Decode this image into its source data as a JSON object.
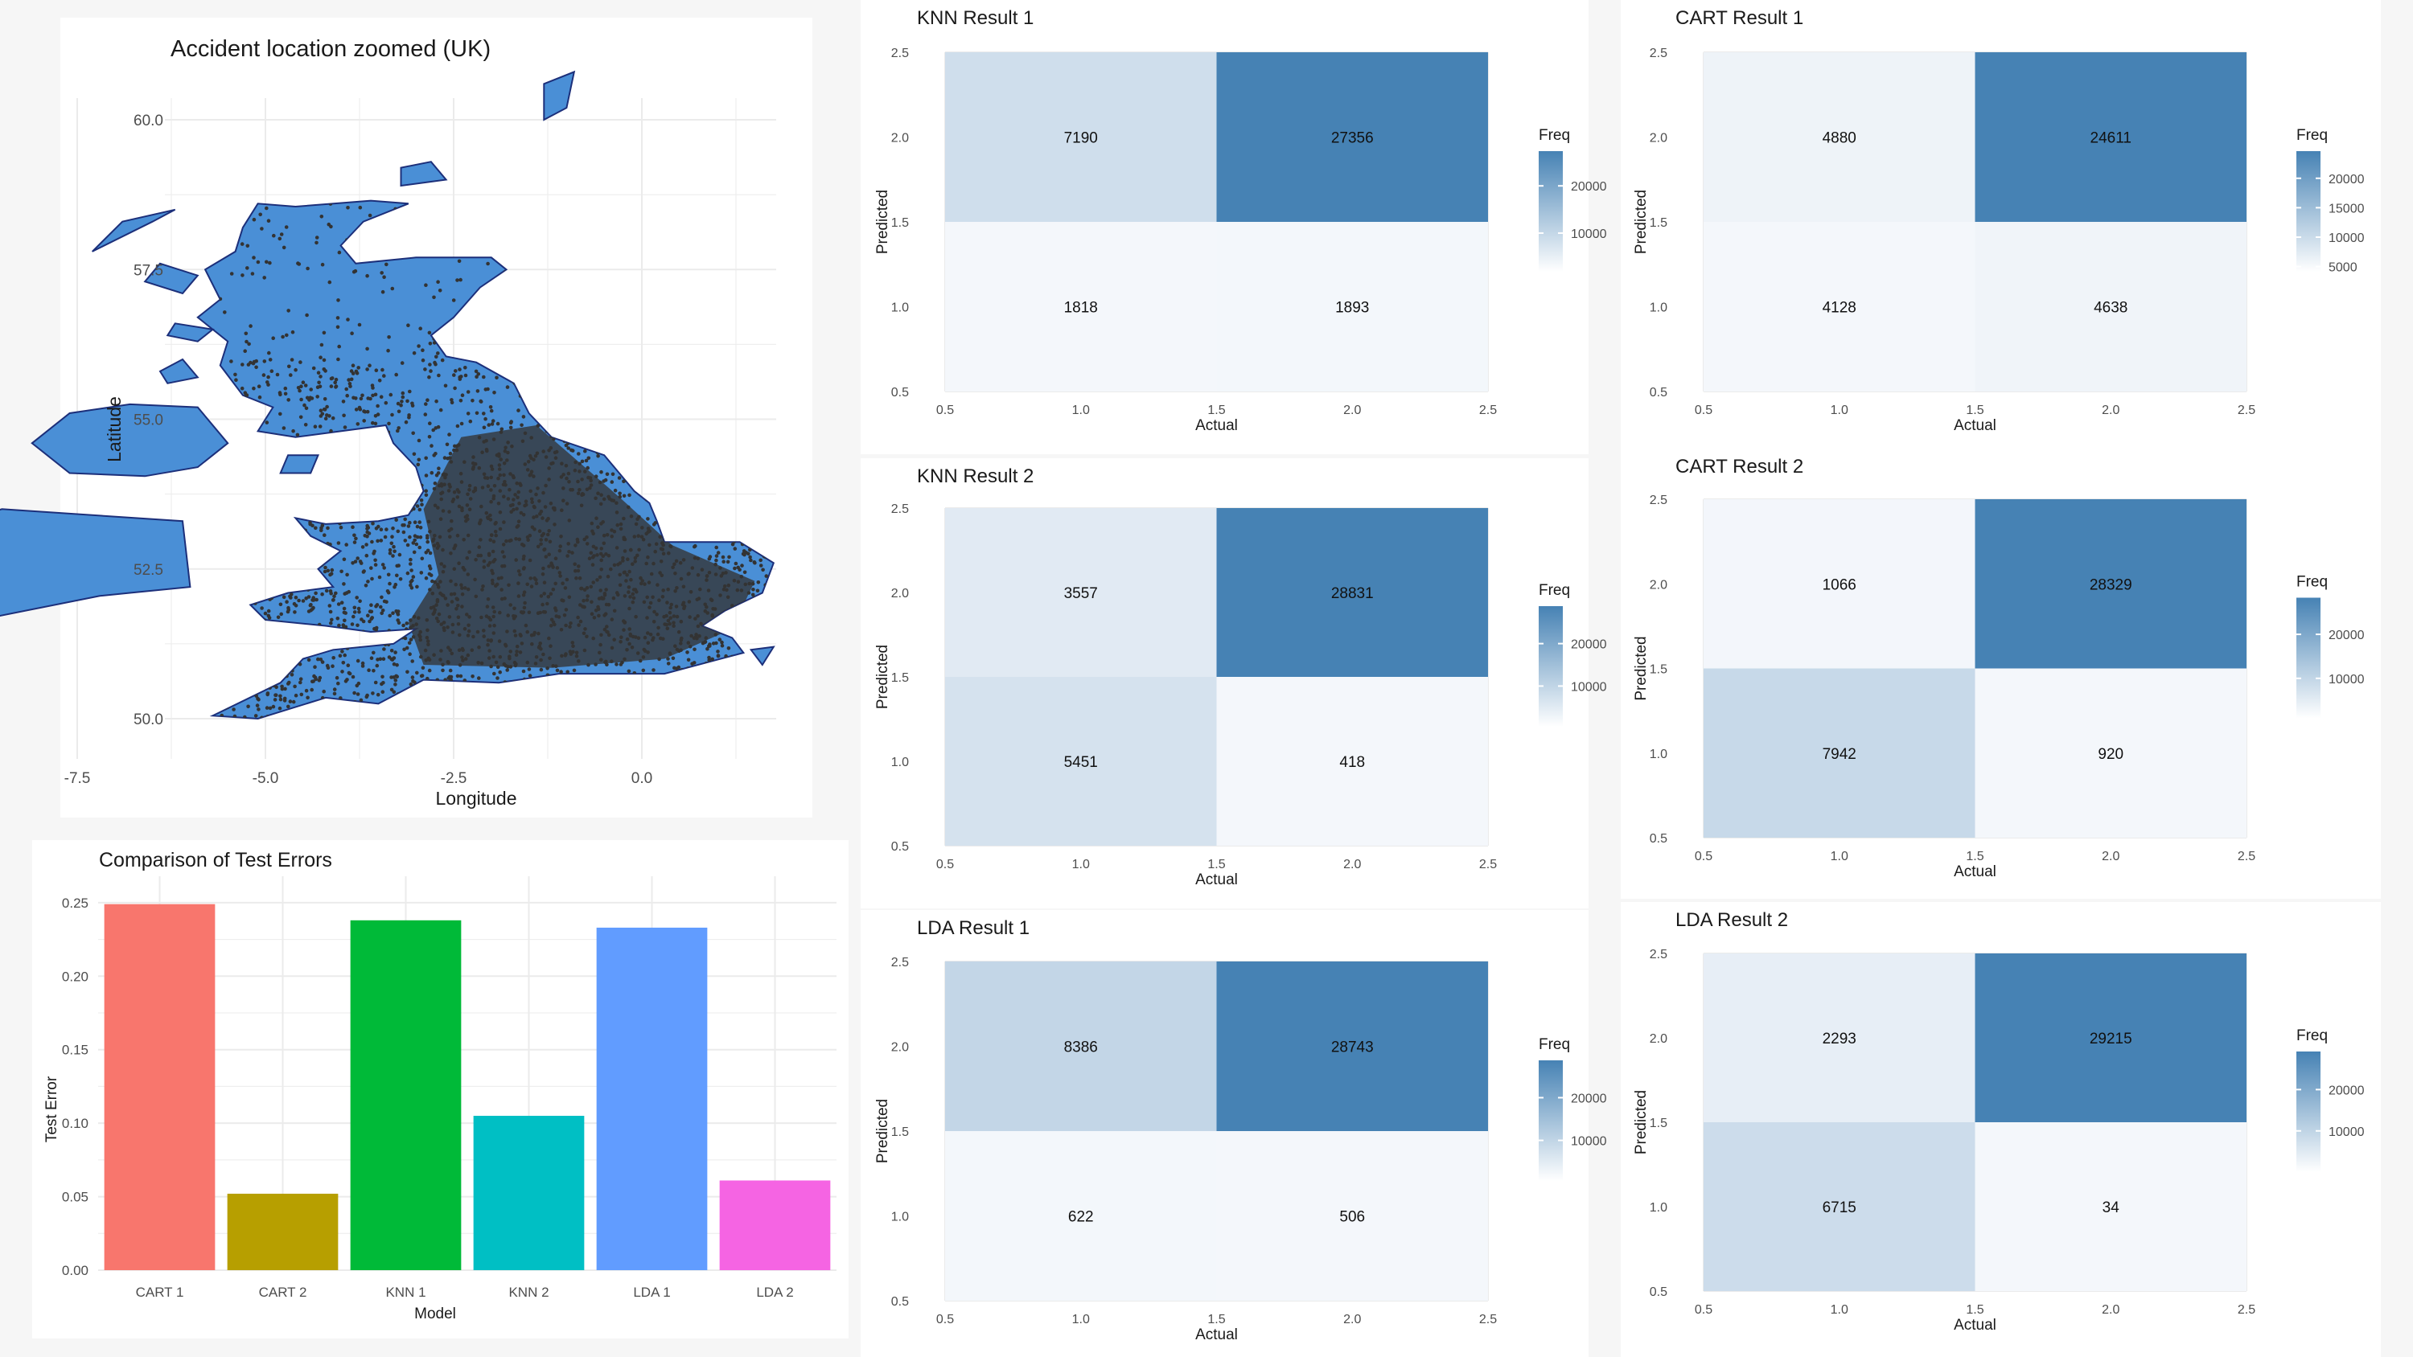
{
  "colors": {
    "land": "#4A8FD6",
    "land_outline": "#1c2f7a",
    "accident_points": "#333333",
    "grid": "#ebebeb",
    "freq_high": "#4682B4",
    "freq_low": "#f4f7fb",
    "axis_text": "#4d4d4d"
  },
  "map": {
    "title": "Accident location zoomed (UK)",
    "xlabel": "Longitude",
    "ylabel": "Latitude",
    "x_ticks": [
      "-7.5",
      "-5.0",
      "-2.5",
      "0.0"
    ],
    "y_ticks": [
      "50.0",
      "52.5",
      "55.0",
      "57.5",
      "60.0"
    ]
  },
  "chart_data": [
    {
      "type": "bar",
      "title": "Comparison of Test Errors",
      "xlabel": "Model",
      "ylabel": "Test Error",
      "categories": [
        "CART 1",
        "CART 2",
        "KNN 1",
        "KNN 2",
        "LDA 1",
        "LDA 2"
      ],
      "values": [
        0.249,
        0.052,
        0.238,
        0.105,
        0.233,
        0.061
      ],
      "colors": [
        "#F8766D",
        "#B79F00",
        "#00BA38",
        "#00BFC4",
        "#619CFF",
        "#F564E3"
      ],
      "ylim": [
        0,
        0.25
      ],
      "y_ticks": [
        "0.00",
        "0.05",
        "0.10",
        "0.15",
        "0.20",
        "0.25"
      ],
      "grid": true
    },
    {
      "type": "heatmap",
      "title": "KNN Result 1",
      "xlabel": "Actual",
      "ylabel": "Predicted",
      "legend_title": "Freq",
      "legend_ticks": [
        "20000",
        "10000"
      ],
      "legend_values": [
        20000,
        10000
      ],
      "range": [
        1818,
        27356
      ],
      "x_ticks": [
        "0.5",
        "1.0",
        "1.5",
        "2.0",
        "2.5"
      ],
      "y_ticks": [
        "0.5",
        "1.0",
        "1.5",
        "2.0",
        "2.5"
      ],
      "cells": [
        {
          "actual": 1,
          "predicted": 2,
          "freq": 7190
        },
        {
          "actual": 2,
          "predicted": 2,
          "freq": 27356
        },
        {
          "actual": 1,
          "predicted": 1,
          "freq": 1818
        },
        {
          "actual": 2,
          "predicted": 1,
          "freq": 1893
        }
      ]
    },
    {
      "type": "heatmap",
      "title": "CART Result 1",
      "xlabel": "Actual",
      "ylabel": "Predicted",
      "legend_title": "Freq",
      "legend_ticks": [
        "20000",
        "15000",
        "10000",
        "5000"
      ],
      "legend_values": [
        20000,
        15000,
        10000,
        5000
      ],
      "range": [
        4128,
        24611
      ],
      "x_ticks": [
        "0.5",
        "1.0",
        "1.5",
        "2.0",
        "2.5"
      ],
      "y_ticks": [
        "0.5",
        "1.0",
        "1.5",
        "2.0",
        "2.5"
      ],
      "cells": [
        {
          "actual": 1,
          "predicted": 2,
          "freq": 4880
        },
        {
          "actual": 2,
          "predicted": 2,
          "freq": 24611
        },
        {
          "actual": 1,
          "predicted": 1,
          "freq": 4128
        },
        {
          "actual": 2,
          "predicted": 1,
          "freq": 4638
        }
      ]
    },
    {
      "type": "heatmap",
      "title": "KNN Result 2",
      "xlabel": "Actual",
      "ylabel": "Predicted",
      "legend_title": "Freq",
      "legend_ticks": [
        "20000",
        "10000"
      ],
      "legend_values": [
        20000,
        10000
      ],
      "range": [
        418,
        28831
      ],
      "x_ticks": [
        "0.5",
        "1.0",
        "1.5",
        "2.0",
        "2.5"
      ],
      "y_ticks": [
        "0.5",
        "1.0",
        "1.5",
        "2.0",
        "2.5"
      ],
      "cells": [
        {
          "actual": 1,
          "predicted": 2,
          "freq": 3557
        },
        {
          "actual": 2,
          "predicted": 2,
          "freq": 28831
        },
        {
          "actual": 1,
          "predicted": 1,
          "freq": 5451
        },
        {
          "actual": 2,
          "predicted": 1,
          "freq": 418
        }
      ]
    },
    {
      "type": "heatmap",
      "title": "CART Result 2",
      "xlabel": "Actual",
      "ylabel": "Predicted",
      "legend_title": "Freq",
      "legend_ticks": [
        "20000",
        "10000"
      ],
      "legend_values": [
        20000,
        10000
      ],
      "range": [
        920,
        28329
      ],
      "x_ticks": [
        "0.5",
        "1.0",
        "1.5",
        "2.0",
        "2.5"
      ],
      "y_ticks": [
        "0.5",
        "1.0",
        "1.5",
        "2.0",
        "2.5"
      ],
      "cells": [
        {
          "actual": 1,
          "predicted": 2,
          "freq": 1066
        },
        {
          "actual": 2,
          "predicted": 2,
          "freq": 28329
        },
        {
          "actual": 1,
          "predicted": 1,
          "freq": 7942
        },
        {
          "actual": 2,
          "predicted": 1,
          "freq": 920
        }
      ]
    },
    {
      "type": "heatmap",
      "title": "LDA Result 1",
      "xlabel": "Actual",
      "ylabel": "Predicted",
      "legend_title": "Freq",
      "legend_ticks": [
        "20000",
        "10000"
      ],
      "legend_values": [
        20000,
        10000
      ],
      "range": [
        506,
        28743
      ],
      "x_ticks": [
        "0.5",
        "1.0",
        "1.5",
        "2.0",
        "2.5"
      ],
      "y_ticks": [
        "0.5",
        "1.0",
        "1.5",
        "2.0",
        "2.5"
      ],
      "cells": [
        {
          "actual": 1,
          "predicted": 2,
          "freq": 8386
        },
        {
          "actual": 2,
          "predicted": 2,
          "freq": 28743
        },
        {
          "actual": 1,
          "predicted": 1,
          "freq": 622
        },
        {
          "actual": 2,
          "predicted": 1,
          "freq": 506
        }
      ]
    },
    {
      "type": "heatmap",
      "title": "LDA Result 2",
      "xlabel": "Actual",
      "ylabel": "Predicted",
      "legend_title": "Freq",
      "legend_ticks": [
        "20000",
        "10000"
      ],
      "legend_values": [
        20000,
        10000
      ],
      "range": [
        34,
        29215
      ],
      "x_ticks": [
        "0.5",
        "1.0",
        "1.5",
        "2.0",
        "2.5"
      ],
      "y_ticks": [
        "0.5",
        "1.0",
        "1.5",
        "2.0",
        "2.5"
      ],
      "cells": [
        {
          "actual": 1,
          "predicted": 2,
          "freq": 2293
        },
        {
          "actual": 2,
          "predicted": 2,
          "freq": 29215
        },
        {
          "actual": 1,
          "predicted": 1,
          "freq": 6715
        },
        {
          "actual": 2,
          "predicted": 1,
          "freq": 34
        }
      ]
    }
  ]
}
